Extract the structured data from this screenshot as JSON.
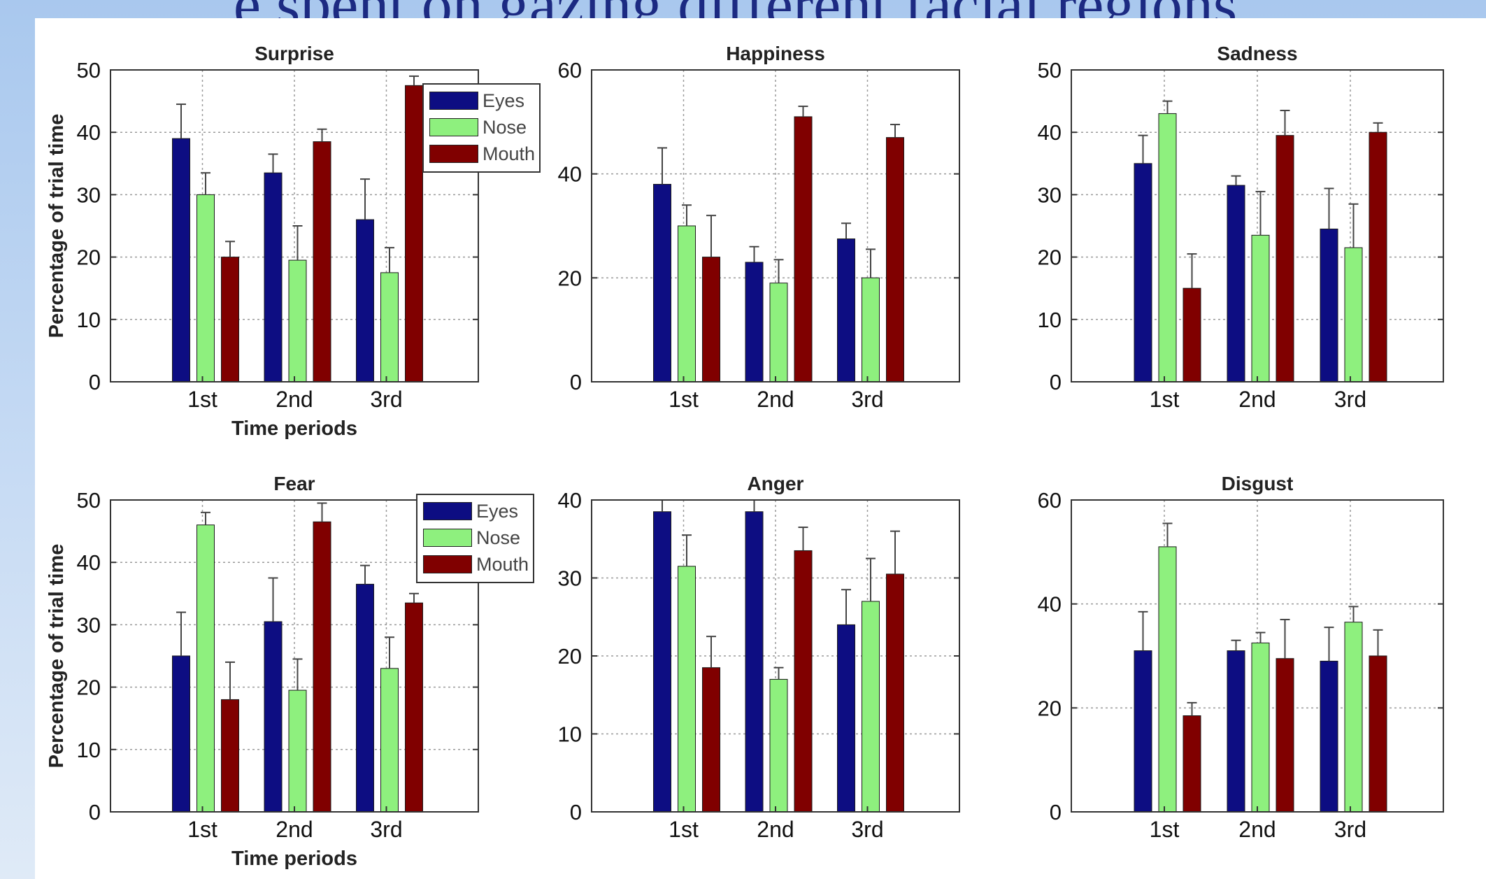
{
  "slide": {
    "title": "e spent on gazing different facial regions."
  },
  "colors": {
    "eyes": "#0d0d82",
    "nose": "#8ef07e",
    "mouth": "#800000"
  },
  "chart_data": [
    {
      "type": "bar",
      "title": "Surprise",
      "categories": [
        "1st",
        "2nd",
        "3rd"
      ],
      "xlabel": "Time periods",
      "ylabel": "Percentage of trial time",
      "ylim": [
        0,
        50
      ],
      "yticks": [
        0,
        10,
        20,
        30,
        40,
        50
      ],
      "grid": true,
      "legend": "top-right",
      "series": [
        {
          "name": "Eyes",
          "values": [
            39,
            33.5,
            26
          ],
          "errors": [
            5.5,
            3,
            6.5
          ]
        },
        {
          "name": "Nose",
          "values": [
            30,
            19.5,
            17.5
          ],
          "errors": [
            3.5,
            5.5,
            4
          ]
        },
        {
          "name": "Mouth",
          "values": [
            20,
            38.5,
            47.5
          ],
          "errors": [
            2.5,
            2,
            1.5
          ]
        }
      ]
    },
    {
      "type": "bar",
      "title": "Happiness",
      "categories": [
        "1st",
        "2nd",
        "3rd"
      ],
      "xlabel": "",
      "ylabel": "",
      "ylim": [
        0,
        60
      ],
      "yticks": [
        0,
        20,
        40,
        60
      ],
      "grid": true,
      "series": [
        {
          "name": "Eyes",
          "values": [
            38,
            23,
            27.5
          ],
          "errors": [
            7,
            3,
            3
          ]
        },
        {
          "name": "Nose",
          "values": [
            30,
            19,
            20
          ],
          "errors": [
            4,
            4.5,
            5.5
          ]
        },
        {
          "name": "Mouth",
          "values": [
            24,
            51,
            47
          ],
          "errors": [
            8,
            2,
            2.5
          ]
        }
      ]
    },
    {
      "type": "bar",
      "title": "Sadness",
      "categories": [
        "1st",
        "2nd",
        "3rd"
      ],
      "xlabel": "",
      "ylabel": "",
      "ylim": [
        0,
        50
      ],
      "yticks": [
        0,
        10,
        20,
        30,
        40,
        50
      ],
      "grid": true,
      "series": [
        {
          "name": "Eyes",
          "values": [
            35,
            31.5,
            24.5
          ],
          "errors": [
            4.5,
            1.5,
            6.5
          ]
        },
        {
          "name": "Nose",
          "values": [
            43,
            23.5,
            21.5
          ],
          "errors": [
            2,
            7,
            7
          ]
        },
        {
          "name": "Mouth",
          "values": [
            15,
            39.5,
            40
          ],
          "errors": [
            5.5,
            4,
            1.5
          ]
        }
      ]
    },
    {
      "type": "bar",
      "title": "Fear",
      "categories": [
        "1st",
        "2nd",
        "3rd"
      ],
      "xlabel": "Time periods",
      "ylabel": "Percentage of trial time",
      "ylim": [
        0,
        50
      ],
      "yticks": [
        0,
        10,
        20,
        30,
        40,
        50
      ],
      "grid": true,
      "legend": "top-right",
      "series": [
        {
          "name": "Eyes",
          "values": [
            25,
            30.5,
            36.5
          ],
          "errors": [
            7,
            7,
            3
          ]
        },
        {
          "name": "Nose",
          "values": [
            46,
            19.5,
            23
          ],
          "errors": [
            2,
            5,
            5
          ]
        },
        {
          "name": "Mouth",
          "values": [
            18,
            46.5,
            33.5
          ],
          "errors": [
            6,
            3,
            1.5
          ]
        }
      ]
    },
    {
      "type": "bar",
      "title": "Anger",
      "categories": [
        "1st",
        "2nd",
        "3rd"
      ],
      "xlabel": "",
      "ylabel": "",
      "ylim": [
        0,
        40
      ],
      "yticks": [
        0,
        10,
        20,
        30,
        40
      ],
      "grid": true,
      "series": [
        {
          "name": "Eyes",
          "values": [
            38.5,
            38.5,
            24
          ],
          "errors": [
            1.5,
            1.5,
            4.5
          ]
        },
        {
          "name": "Nose",
          "values": [
            31.5,
            17,
            27
          ],
          "errors": [
            4,
            1.5,
            5.5
          ]
        },
        {
          "name": "Mouth",
          "values": [
            18.5,
            33.5,
            30.5
          ],
          "errors": [
            4,
            3,
            5.5
          ]
        }
      ]
    },
    {
      "type": "bar",
      "title": "Disgust",
      "categories": [
        "1st",
        "2nd",
        "3rd"
      ],
      "xlabel": "",
      "ylabel": "",
      "ylim": [
        0,
        60
      ],
      "yticks": [
        0,
        20,
        40,
        60
      ],
      "grid": true,
      "series": [
        {
          "name": "Eyes",
          "values": [
            31,
            31,
            29
          ],
          "errors": [
            7.5,
            2,
            6.5
          ]
        },
        {
          "name": "Nose",
          "values": [
            51,
            32.5,
            36.5
          ],
          "errors": [
            4.5,
            2,
            3
          ]
        },
        {
          "name": "Mouth",
          "values": [
            18.5,
            29.5,
            30
          ],
          "errors": [
            2.5,
            7.5,
            5
          ]
        }
      ]
    }
  ]
}
